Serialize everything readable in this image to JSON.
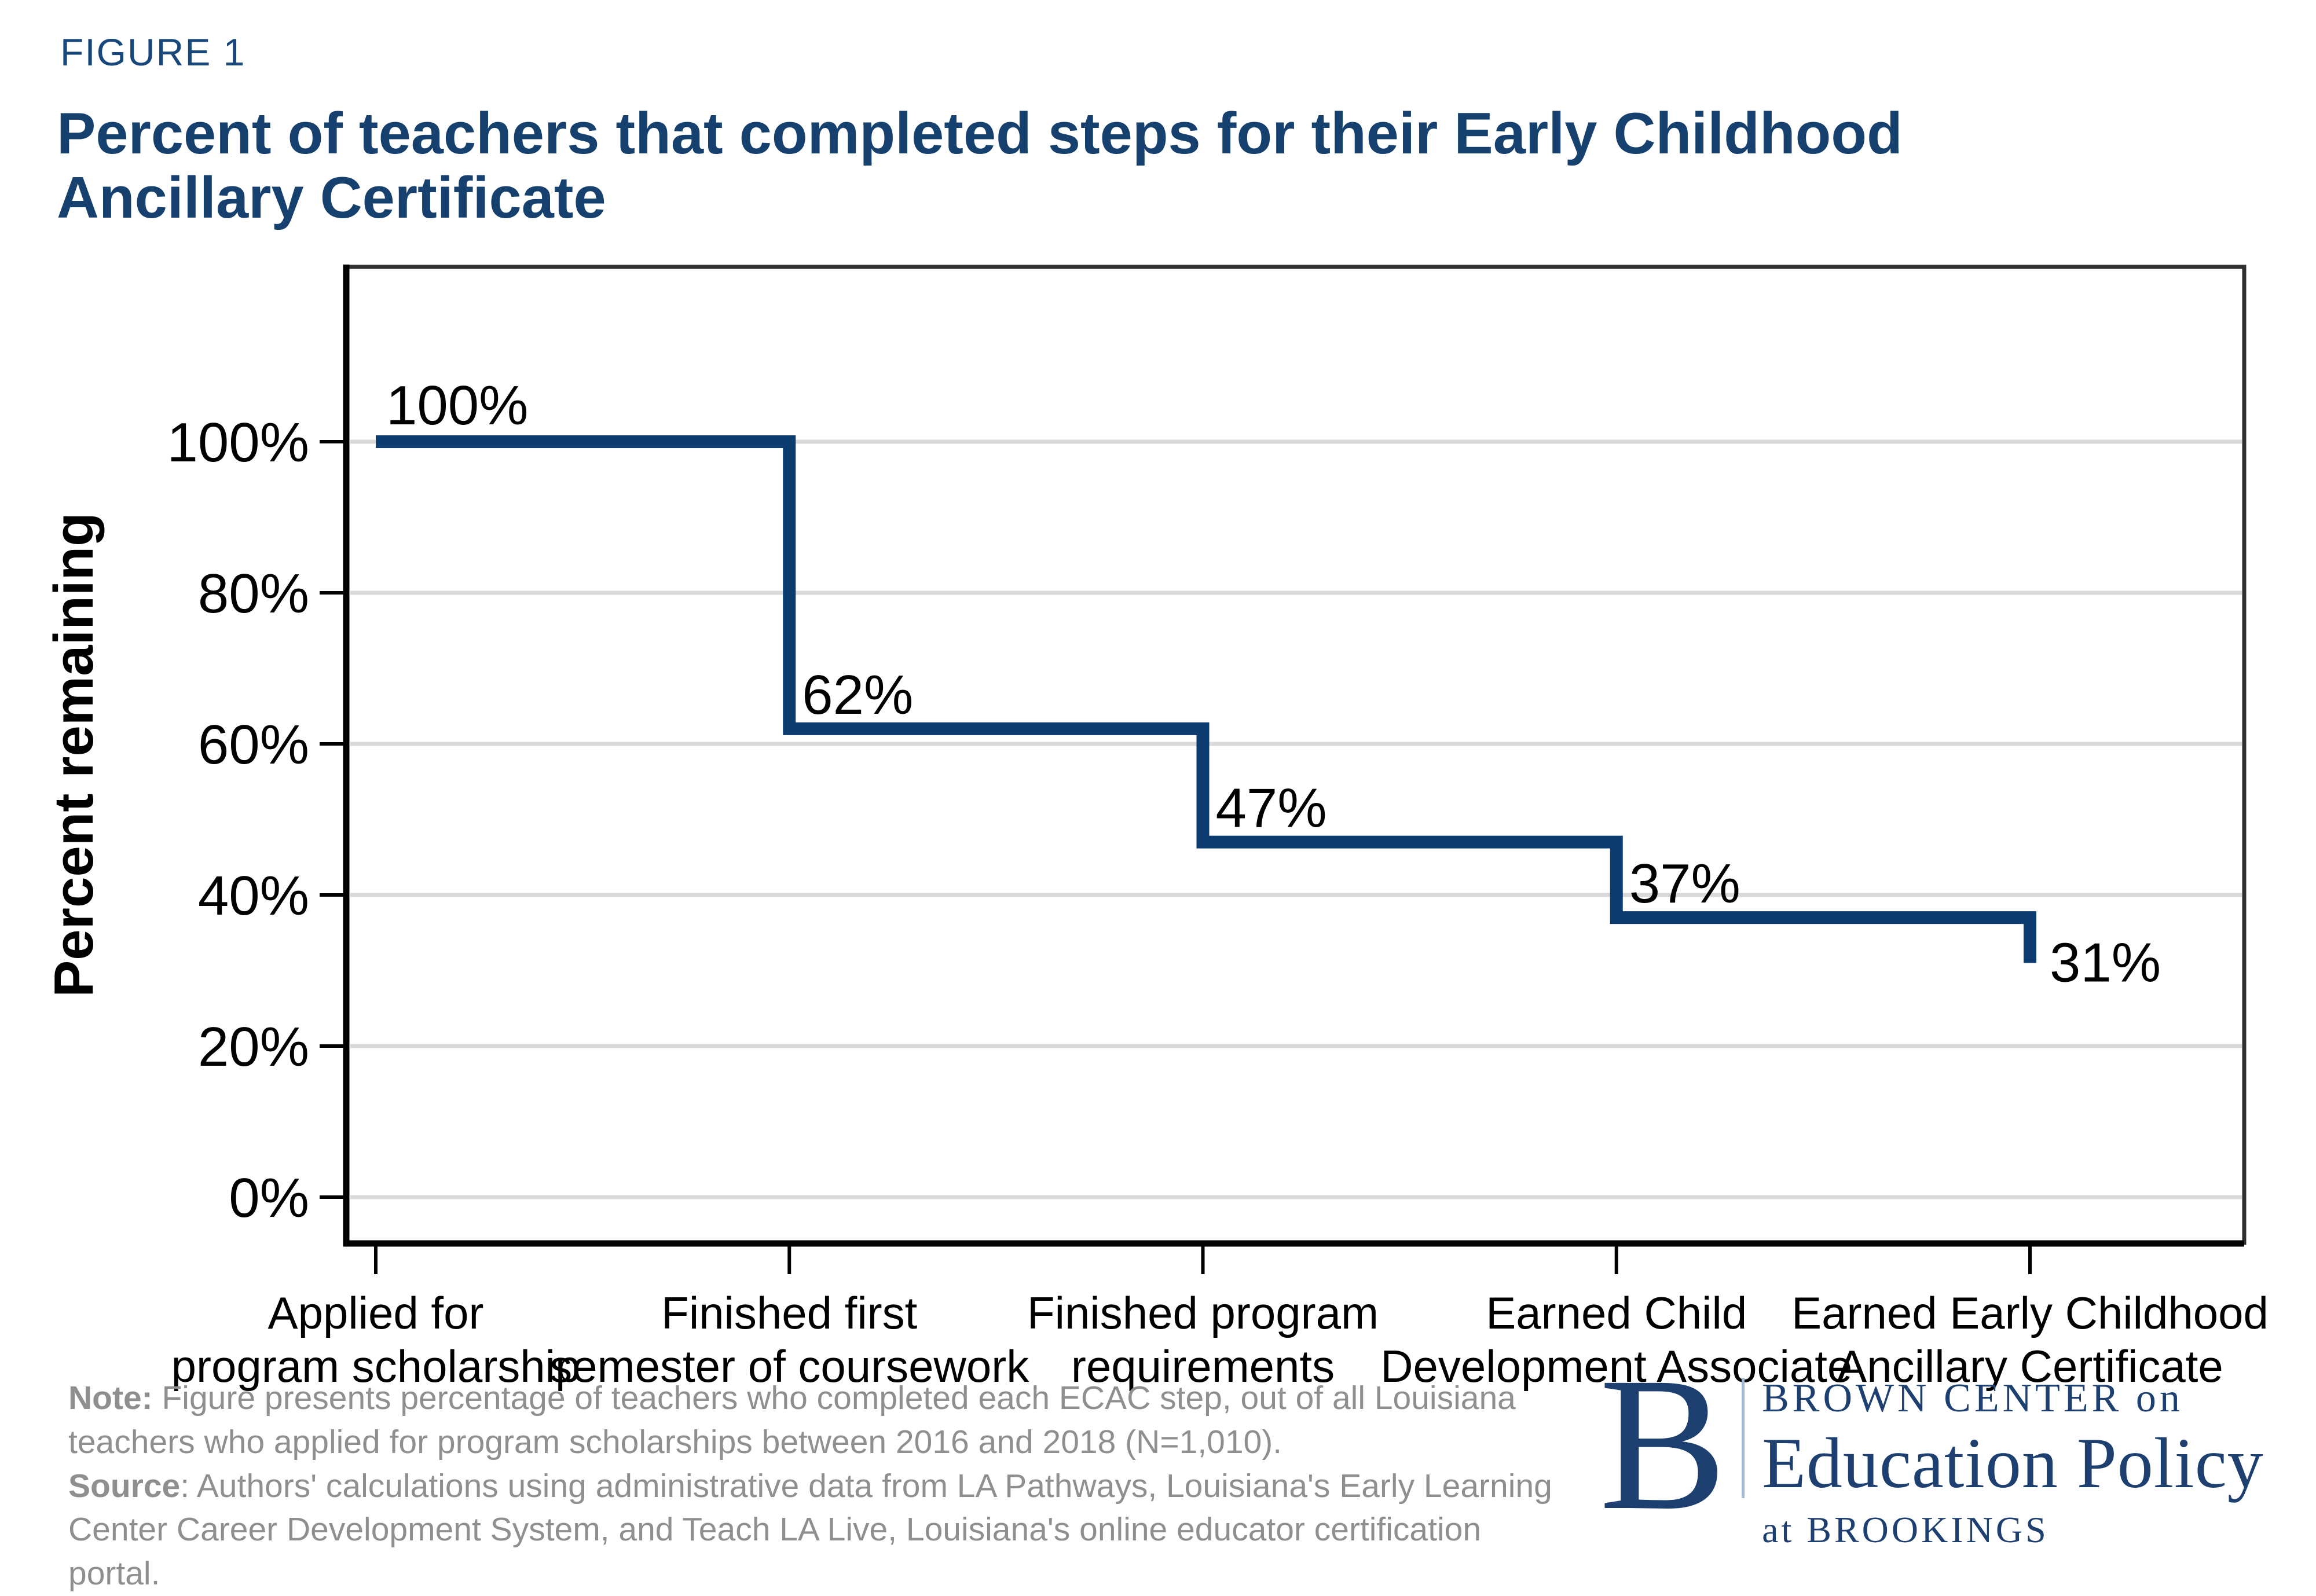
{
  "figure_label": "FIGURE 1",
  "title_lines": [
    "Percent of teachers that completed steps for their Early Childhood",
    "Ancillary Certificate"
  ],
  "chart_data": {
    "type": "line",
    "subtype": "step-survival",
    "categories": [
      "Applied for\nprogram scholarship",
      "Finished first\nsemester of coursework",
      "Finished program\nrequirements",
      "Earned Child\nDevelopment Associate",
      "Earned Early Childhood\nAncillary Certificate"
    ],
    "values": [
      100,
      62,
      47,
      37,
      31
    ],
    "point_labels": [
      "100%",
      "62%",
      "47%",
      "37%",
      "31%"
    ],
    "ylabel": "Percent remaining",
    "xlabel": "",
    "ytick_values": [
      0,
      20,
      40,
      60,
      80,
      100
    ],
    "ytick_labels": [
      "0%",
      "20%",
      "40%",
      "60%",
      "80%",
      "100%"
    ],
    "ylim": [
      -6,
      124
    ],
    "grid": "horizontal-only",
    "legend": "none"
  },
  "note": {
    "label": "Note:",
    "text": [
      " Figure presents percentage of teachers who completed each ECAC step, out of all Louisiana",
      "teachers who applied for program scholarships between 2016 and 2018 (N=1,010)."
    ]
  },
  "source": {
    "label": "Source",
    "text": [
      ": Authors' calculations using administrative data from LA Pathways, Louisiana's Early Learning",
      "Center Career Development System, and Teach LA Live, Louisiana's online educator certification portal."
    ]
  },
  "logo": {
    "b": "B",
    "line1": "BROWN CENTER on",
    "line2": "Education Policy",
    "line3": "at BROOKINGS"
  },
  "colors": {
    "title_navy": "#16406e",
    "figure_label_navy": "#17477b",
    "line_navy": "#0d3d70",
    "grid_gray": "#d9d9d9",
    "note_gray": "#8f8f8f",
    "logo_navy": "#1e4070",
    "axis_black": "#000000"
  }
}
